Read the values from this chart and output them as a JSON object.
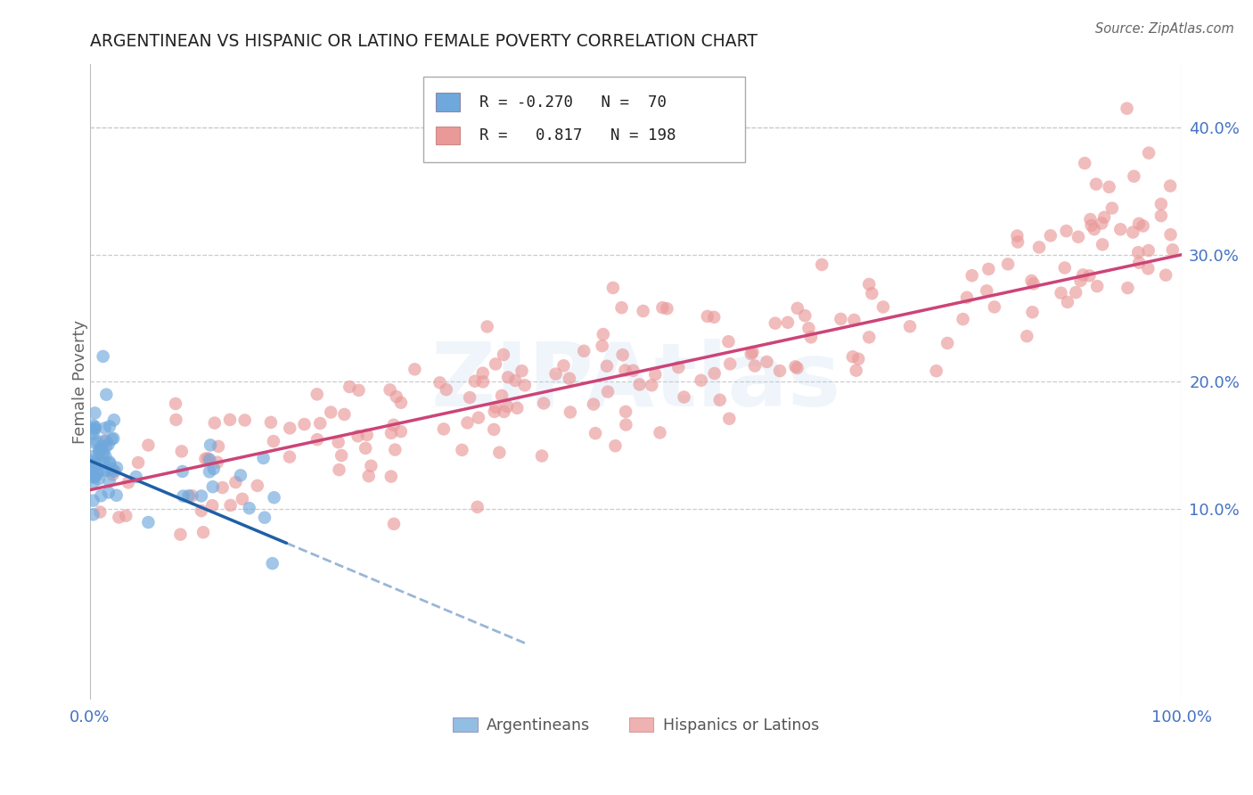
{
  "title": "ARGENTINEAN VS HISPANIC OR LATINO FEMALE POVERTY CORRELATION CHART",
  "source": "Source: ZipAtlas.com",
  "ylabel": "Female Poverty",
  "xlim": [
    0,
    1.0
  ],
  "ylim": [
    -0.05,
    0.45
  ],
  "ytick_vals": [
    0.1,
    0.2,
    0.3,
    0.4
  ],
  "blue_R": -0.27,
  "blue_N": 70,
  "pink_R": 0.817,
  "pink_N": 198,
  "blue_color": "#6fa8dc",
  "pink_color": "#ea9999",
  "blue_line_color": "#1f5fa6",
  "pink_line_color": "#cc4477",
  "grid_color": "#cccccc",
  "title_color": "#222222",
  "label_color": "#4472c4",
  "watermark": "ZIPAtlas",
  "legend_label_blue": "Argentineans",
  "legend_label_pink": "Hispanics or Latinos"
}
